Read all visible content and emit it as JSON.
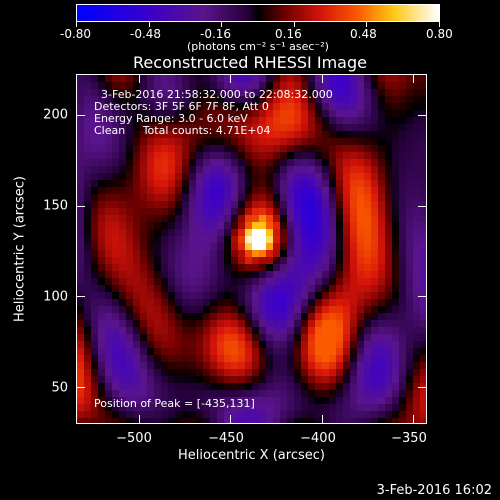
{
  "colorbar": {
    "tick_labels": [
      "-0.80",
      "-0.48",
      "-0.16",
      "0.16",
      "0.48",
      "0.80"
    ],
    "unit_label": "(photons cm⁻² s⁻¹ asec⁻²)",
    "range": [
      -0.8,
      0.8
    ],
    "colormap": "blue-purple-black-red-yellow-white"
  },
  "plot": {
    "title": "Reconstructed RHESSI Image",
    "annotations": {
      "time_range": "3-Feb-2016 21:58:32.000 to 22:08:32.000",
      "detectors": "Detectors: 3F 5F 6F 7F 8F, Att 0",
      "energy_range": "Energy Range: 3.0 - 6.0 keV",
      "algorithm": "Clean     Total counts: 4.71E+04",
      "peak_position": "Position of Peak = [-435,131]"
    },
    "x_axis": {
      "label": "Heliocentric X (arcsec)",
      "tick_labels": [
        "−500",
        "−450",
        "−400",
        "−350"
      ],
      "tick_values": [
        -500,
        -450,
        -400,
        -350
      ],
      "range": [
        -534,
        -343
      ]
    },
    "y_axis": {
      "label": "Heliocentric Y (arcsec)",
      "tick_labels": [
        "50",
        "100",
        "150",
        "200"
      ],
      "tick_values": [
        50,
        100,
        150,
        200
      ],
      "range": [
        30,
        222
      ]
    },
    "peak": {
      "x": -435,
      "y": 131
    }
  },
  "footer": {
    "timestamp": "3-Feb-2016 16:02"
  }
}
